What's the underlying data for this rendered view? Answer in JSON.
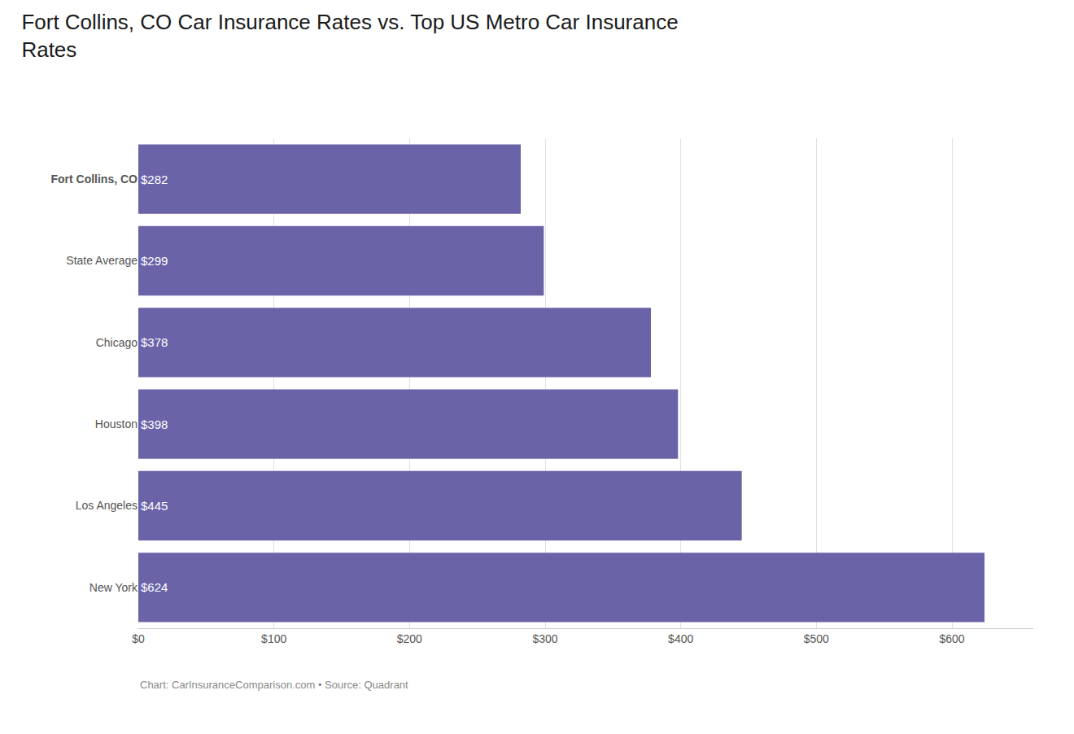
{
  "chart_data": {
    "type": "bar",
    "orientation": "horizontal",
    "title": "Fort Collins, CO Car Insurance Rates vs. Top US Metro Car Insurance\nRates",
    "categories": [
      "Fort Collins, CO",
      "State Average",
      "Chicago",
      "Houston",
      "Los Angeles",
      "New York"
    ],
    "values": [
      282,
      299,
      378,
      398,
      445,
      624
    ],
    "value_labels": [
      "$282",
      "$299",
      "$378",
      "$398",
      "$445",
      "$624"
    ],
    "data_labels": true,
    "color": "#6b63a8",
    "xlim": [
      0,
      660
    ],
    "xticks": [
      {
        "value": 0,
        "label": "$0"
      },
      {
        "value": 100,
        "label": "$100"
      },
      {
        "value": 200,
        "label": "$200"
      },
      {
        "value": 300,
        "label": "$300"
      },
      {
        "value": 400,
        "label": "$400"
      },
      {
        "value": 500,
        "label": "$500"
      },
      {
        "value": 600,
        "label": "$600"
      }
    ],
    "grid": true,
    "annotations": [
      "Chart: CarInsuranceComparison.com • Source: Quadrant"
    ]
  }
}
